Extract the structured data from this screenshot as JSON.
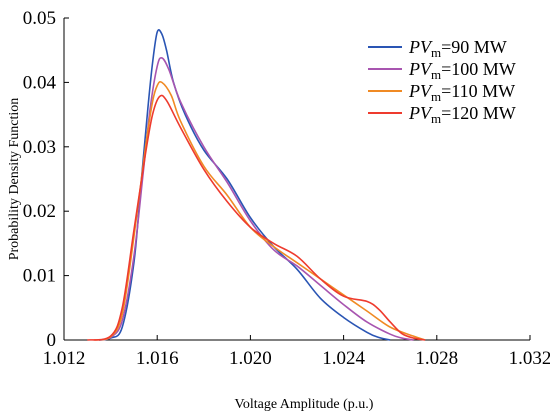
{
  "chart_data": {
    "type": "line",
    "xlabel": "Voltage Amplitude (p.u.)",
    "ylabel": "Probability Density Function",
    "xlim": [
      1.012,
      1.032
    ],
    "ylim": [
      0,
      0.05
    ],
    "xticks": [
      "1.012",
      "1.016",
      "1.020",
      "1.024",
      "1.028",
      "1.032"
    ],
    "yticks": [
      "0",
      "0.01",
      "0.02",
      "0.03",
      "0.04",
      "0.05"
    ],
    "legend_position": "top-right",
    "grid": false,
    "series": [
      {
        "legend_prefix": "PV",
        "legend_sub": "m",
        "legend_suffix": "=90 MW",
        "color": "#2a55b4",
        "points": [
          [
            1.0135,
            0
          ],
          [
            1.014,
            0.0003
          ],
          [
            1.0145,
            0.002
          ],
          [
            1.015,
            0.012
          ],
          [
            1.0153,
            0.024
          ],
          [
            1.0156,
            0.036
          ],
          [
            1.0158,
            0.043
          ],
          [
            1.016,
            0.0478
          ],
          [
            1.0162,
            0.0475
          ],
          [
            1.0164,
            0.045
          ],
          [
            1.0167,
            0.04
          ],
          [
            1.0172,
            0.035
          ],
          [
            1.018,
            0.0295
          ],
          [
            1.019,
            0.025
          ],
          [
            1.02,
            0.019
          ],
          [
            1.021,
            0.0145
          ],
          [
            1.022,
            0.011
          ],
          [
            1.023,
            0.0065
          ],
          [
            1.024,
            0.0035
          ],
          [
            1.025,
            0.0012
          ],
          [
            1.0255,
            0.0004
          ],
          [
            1.026,
            0
          ]
        ]
      },
      {
        "legend_prefix": "PV",
        "legend_sub": "m",
        "legend_suffix": "=100 MW",
        "color": "#a855b0",
        "points": [
          [
            1.0135,
            0
          ],
          [
            1.014,
            0.0004
          ],
          [
            1.0145,
            0.003
          ],
          [
            1.015,
            0.013
          ],
          [
            1.0154,
            0.026
          ],
          [
            1.0157,
            0.036
          ],
          [
            1.016,
            0.0425
          ],
          [
            1.0162,
            0.0438
          ],
          [
            1.0165,
            0.042
          ],
          [
            1.017,
            0.037
          ],
          [
            1.018,
            0.03
          ],
          [
            1.019,
            0.0245
          ],
          [
            1.02,
            0.0185
          ],
          [
            1.021,
            0.014
          ],
          [
            1.022,
            0.0115
          ],
          [
            1.023,
            0.0085
          ],
          [
            1.024,
            0.0055
          ],
          [
            1.025,
            0.0028
          ],
          [
            1.026,
            0.0009
          ],
          [
            1.0265,
            0.0003
          ],
          [
            1.027,
            0
          ]
        ]
      },
      {
        "legend_prefix": "PV",
        "legend_sub": "m",
        "legend_suffix": "=110 MW",
        "color": "#f08a24",
        "points": [
          [
            1.0133,
            0
          ],
          [
            1.014,
            0.0005
          ],
          [
            1.0145,
            0.004
          ],
          [
            1.015,
            0.016
          ],
          [
            1.0155,
            0.03
          ],
          [
            1.0158,
            0.037
          ],
          [
            1.016,
            0.0395
          ],
          [
            1.0162,
            0.04
          ],
          [
            1.0166,
            0.038
          ],
          [
            1.017,
            0.034
          ],
          [
            1.018,
            0.027
          ],
          [
            1.019,
            0.0225
          ],
          [
            1.02,
            0.0175
          ],
          [
            1.021,
            0.0145
          ],
          [
            1.022,
            0.012
          ],
          [
            1.023,
            0.0095
          ],
          [
            1.024,
            0.007
          ],
          [
            1.025,
            0.0045
          ],
          [
            1.026,
            0.002
          ],
          [
            1.027,
            0.0006
          ],
          [
            1.0275,
            0
          ]
        ]
      },
      {
        "legend_prefix": "PV",
        "legend_sub": "m",
        "legend_suffix": "=120 MW",
        "color": "#ee3b2e",
        "points": [
          [
            1.013,
            0
          ],
          [
            1.014,
            0.0006
          ],
          [
            1.0145,
            0.005
          ],
          [
            1.015,
            0.017
          ],
          [
            1.0155,
            0.029
          ],
          [
            1.0158,
            0.035
          ],
          [
            1.0161,
            0.0378
          ],
          [
            1.0164,
            0.0372
          ],
          [
            1.017,
            0.033
          ],
          [
            1.018,
            0.0265
          ],
          [
            1.019,
            0.0215
          ],
          [
            1.02,
            0.0175
          ],
          [
            1.021,
            0.015
          ],
          [
            1.022,
            0.013
          ],
          [
            1.023,
            0.0095
          ],
          [
            1.024,
            0.0068
          ],
          [
            1.025,
            0.006
          ],
          [
            1.0255,
            0.0048
          ],
          [
            1.026,
            0.0028
          ],
          [
            1.0265,
            0.001
          ],
          [
            1.027,
            0.0003
          ],
          [
            1.0275,
            0
          ]
        ]
      }
    ]
  }
}
